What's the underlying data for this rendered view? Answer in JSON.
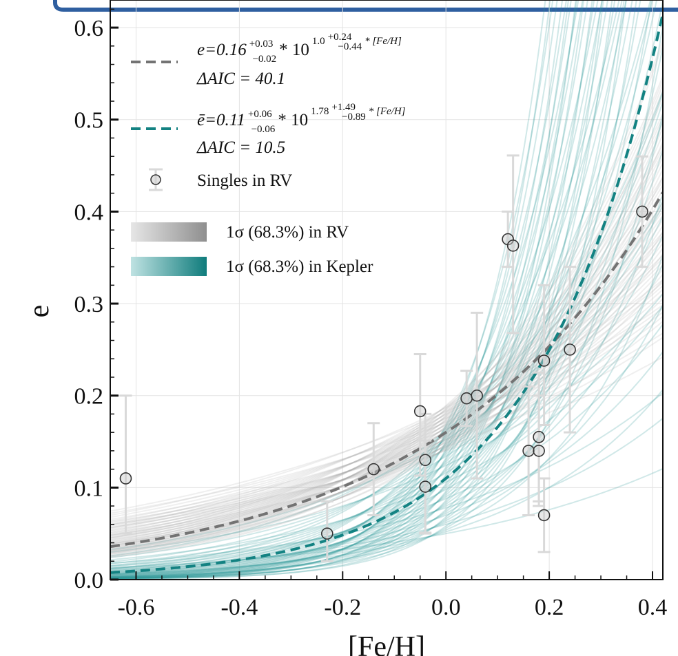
{
  "chart_data": {
    "type": "scatter",
    "title": "",
    "xlabel": "[Fe/H]",
    "ylabel": "e",
    "xlim": [
      -0.65,
      0.42
    ],
    "ylim": [
      0.0,
      0.63
    ],
    "xticks": [
      "-0.6",
      "-0.4",
      "-0.2",
      "0.0",
      "0.2",
      "0.4"
    ],
    "yticks": [
      "0.0",
      "0.1",
      "0.2",
      "0.3",
      "0.4",
      "0.5",
      "0.6"
    ],
    "grid": true,
    "legend_position": "top-left",
    "legend": {
      "rv_model_label": "e = 0.16^{+0.03}_{-0.02} * 10^{1.0^{+0.24}_{-0.44} * [Fe/H]}",
      "rv_model_eq_main": "e=0.16",
      "rv_model_eq_sup1": "+0.03",
      "rv_model_eq_sub1": "−0.02",
      "rv_model_eq_mid": " * 10",
      "rv_model_eq_exp": "1.0",
      "rv_model_eq_sup2": "+0.24",
      "rv_model_eq_sub2": "−0.44",
      "rv_model_eq_tail": " * [Fe/H]",
      "rv_model_aic": "ΔAIC = 40.1",
      "kepler_model_label": "ē = 0.11^{+0.06}_{-0.06} * 10^{1.78^{+1.49}_{-0.89} * [Fe/H]}",
      "kepler_model_eq_main": "ē=0.11",
      "kepler_model_eq_sup1": "+0.06",
      "kepler_model_eq_sub1": "−0.06",
      "kepler_model_eq_mid": " * 10",
      "kepler_model_eq_exp": "1.78",
      "kepler_model_eq_sup2": "+1.49",
      "kepler_model_eq_sub2": "−0.89",
      "kepler_model_eq_tail": " * [Fe/H]",
      "kepler_model_aic": "ΔAIC = 10.5",
      "singles_label": "Singles in RV",
      "rv_band_label": "1σ (68.3%) in RV",
      "kepler_band_label": "1σ (68.3%) in Kepler"
    },
    "series": [
      {
        "name": "Singles in RV",
        "kind": "points",
        "points": [
          {
            "x": -0.62,
            "y": 0.11,
            "err_lo": 0.06,
            "err_hi": 0.09
          },
          {
            "x": -0.23,
            "y": 0.05,
            "err_lo": 0.03,
            "err_hi": 0.035
          },
          {
            "x": -0.14,
            "y": 0.12,
            "err_lo": 0.05,
            "err_hi": 0.05
          },
          {
            "x": -0.05,
            "y": 0.183,
            "err_lo": 0.07,
            "err_hi": 0.062
          },
          {
            "x": -0.04,
            "y": 0.13,
            "err_lo": 0.08,
            "err_hi": 0.05
          },
          {
            "x": -0.04,
            "y": 0.101,
            "err_lo": 0.05,
            "err_hi": 0.05
          },
          {
            "x": 0.04,
            "y": 0.197,
            "err_lo": 0.03,
            "err_hi": 0.03
          },
          {
            "x": 0.06,
            "y": 0.2,
            "err_lo": 0.09,
            "err_hi": 0.09
          },
          {
            "x": 0.12,
            "y": 0.37,
            "err_lo": 0.03,
            "err_hi": 0.03
          },
          {
            "x": 0.13,
            "y": 0.363,
            "err_lo": 0.095,
            "err_hi": 0.098
          },
          {
            "x": 0.16,
            "y": 0.14,
            "err_lo": 0.07,
            "err_hi": 0.07
          },
          {
            "x": 0.18,
            "y": 0.14,
            "err_lo": 0.06,
            "err_hi": 0.06
          },
          {
            "x": 0.18,
            "y": 0.155,
            "err_lo": 0.07,
            "err_hi": 0.07
          },
          {
            "x": 0.19,
            "y": 0.238,
            "err_lo": 0.07,
            "err_hi": 0.082
          },
          {
            "x": 0.19,
            "y": 0.07,
            "err_lo": 0.04,
            "err_hi": 0.04
          },
          {
            "x": 0.24,
            "y": 0.25,
            "err_lo": 0.09,
            "err_hi": 0.09
          },
          {
            "x": 0.38,
            "y": 0.4,
            "err_lo": 0.06,
            "err_hi": 0.06
          }
        ]
      },
      {
        "name": "RV model",
        "kind": "model-line",
        "style": "dashed",
        "A": 0.16,
        "A_lo": 0.14,
        "A_hi": 0.19,
        "B": 1.0,
        "B_lo": 0.56,
        "B_hi": 1.24
      },
      {
        "name": "Kepler model",
        "kind": "model-line",
        "style": "dashed",
        "A": 0.11,
        "A_lo": 0.05,
        "A_hi": 0.17,
        "B": 1.78,
        "B_lo": 0.89,
        "B_hi": 3.27
      }
    ],
    "colors": {
      "rv": "#737373",
      "rv_band": "#a6a6a6",
      "kepler": "#138282",
      "kepler_band": "#2a9898",
      "point_edge": "#333333",
      "errbar": "#d9d9d9",
      "grid": "#e3e3e3",
      "axis": "#111111"
    }
  }
}
